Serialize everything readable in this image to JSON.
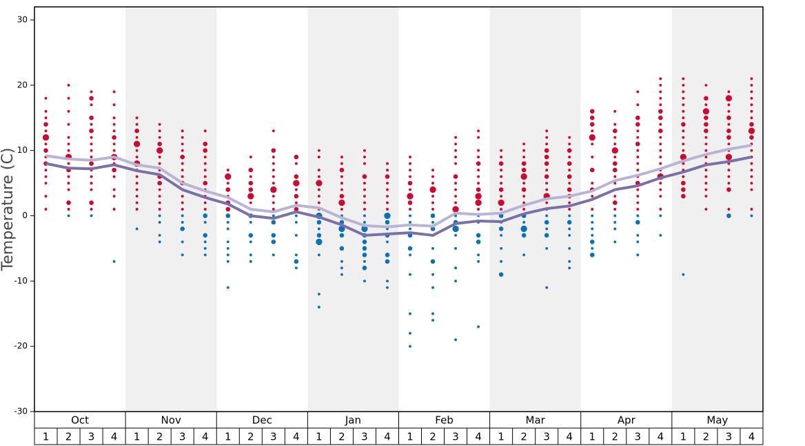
{
  "chart_data": {
    "type": "bubble",
    "ylabel": "Temperature (C)",
    "ylim": [
      -30,
      32
    ],
    "yticks": [
      -30,
      -20,
      -10,
      0,
      10,
      20,
      30
    ],
    "months": [
      "Oct",
      "Nov",
      "Dec",
      "Jan",
      "Feb",
      "Mar",
      "Apr",
      "May"
    ],
    "categories": [
      "1",
      "2",
      "3",
      "4",
      "1",
      "2",
      "3",
      "4",
      "1",
      "2",
      "3",
      "4",
      "1",
      "2",
      "3",
      "4",
      "1",
      "2",
      "3",
      "4",
      "1",
      "2",
      "3",
      "4",
      "1",
      "2",
      "3",
      "4",
      "1",
      "2",
      "3",
      "4"
    ],
    "colors": {
      "above": "#cc0a2f",
      "below": "#0a72b4"
    },
    "series": [
      {
        "color": "#b9b3d6",
        "values": [
          9.2,
          8.7,
          8.5,
          9.0,
          7.8,
          7.3,
          5.0,
          3.8,
          2.8,
          1.0,
          0.6,
          1.6,
          1.2,
          -0.3,
          -1.5,
          -1.7,
          -1.4,
          -1.6,
          0.4,
          0.2,
          0.4,
          1.6,
          2.6,
          3.0,
          3.8,
          5.4,
          6.2,
          7.2,
          8.4,
          9.4,
          10.2,
          10.8
        ]
      },
      {
        "color": "#7b6fa9",
        "values": [
          8.0,
          7.3,
          7.2,
          7.8,
          6.9,
          6.3,
          4.0,
          2.8,
          1.8,
          0.0,
          -0.4,
          0.6,
          -0.2,
          -1.4,
          -3.0,
          -2.8,
          -2.6,
          -3.0,
          -1.2,
          -0.8,
          -0.9,
          0.3,
          1.1,
          1.5,
          2.5,
          4.0,
          4.6,
          5.8,
          6.7,
          7.8,
          8.3,
          9.0
        ]
      }
    ],
    "dots": [
      {
        "temps": [
          18,
          16,
          15,
          14,
          13,
          12,
          11,
          10,
          9,
          8,
          7,
          6,
          5,
          3,
          1
        ],
        "sizes": [
          1,
          1,
          1,
          2,
          1,
          3,
          1,
          2,
          1,
          2,
          1,
          1,
          1,
          1,
          1
        ]
      },
      {
        "temps": [
          20,
          18,
          16,
          14,
          12,
          11,
          10,
          9,
          8,
          7,
          6,
          5,
          4,
          2,
          1,
          0
        ],
        "sizes": [
          1,
          1,
          1,
          1,
          1,
          1,
          1,
          3,
          1,
          2,
          1,
          1,
          1,
          2,
          1,
          1
        ]
      },
      {
        "temps": [
          19,
          18,
          17,
          15,
          14,
          13,
          12,
          11,
          10,
          9,
          8,
          7,
          6,
          5,
          4,
          2,
          1,
          0
        ],
        "sizes": [
          1,
          2,
          1,
          2,
          1,
          2,
          1,
          1,
          1,
          1,
          2,
          1,
          1,
          1,
          1,
          2,
          1,
          1
        ]
      },
      {
        "temps": [
          19,
          17,
          15,
          14,
          13,
          12,
          11,
          10,
          9,
          8,
          7,
          6,
          4,
          3,
          1,
          -7
        ],
        "sizes": [
          1,
          1,
          1,
          1,
          1,
          2,
          1,
          1,
          3,
          1,
          2,
          1,
          1,
          1,
          1,
          1
        ]
      },
      {
        "temps": [
          15,
          14,
          13,
          12,
          11,
          10,
          9,
          8,
          7,
          6,
          5,
          4,
          3,
          2,
          1,
          -2
        ],
        "sizes": [
          1,
          1,
          2,
          1,
          3,
          1,
          1,
          3,
          1,
          1,
          1,
          1,
          1,
          1,
          1,
          1
        ]
      },
      {
        "temps": [
          14,
          13,
          12,
          11,
          10,
          9,
          8,
          7,
          6,
          5,
          4,
          3,
          2,
          1,
          0,
          -1,
          -3,
          -4
        ],
        "sizes": [
          1,
          1,
          1,
          2,
          3,
          1,
          1,
          1,
          2,
          2,
          1,
          1,
          1,
          1,
          1,
          1,
          1,
          1
        ]
      },
      {
        "temps": [
          13,
          12,
          11,
          10,
          9,
          8,
          7,
          6,
          5,
          4,
          3,
          2,
          1,
          0,
          -1,
          -2,
          -4,
          -6
        ],
        "sizes": [
          1,
          1,
          1,
          1,
          2,
          1,
          1,
          1,
          2,
          1,
          1,
          1,
          1,
          1,
          1,
          2,
          1,
          1
        ]
      },
      {
        "temps": [
          13,
          11,
          10,
          9,
          8,
          7,
          6,
          5,
          4,
          3,
          2,
          1,
          0,
          -1,
          -3,
          -4,
          -5,
          -6
        ],
        "sizes": [
          1,
          2,
          2,
          1,
          1,
          1,
          1,
          2,
          1,
          1,
          1,
          1,
          2,
          1,
          2,
          1,
          1,
          1
        ]
      },
      {
        "temps": [
          7,
          6,
          5,
          4,
          3,
          2,
          1,
          0,
          -1,
          -2,
          -4,
          -5,
          -6,
          -7,
          -11
        ],
        "sizes": [
          1,
          3,
          1,
          2,
          1,
          2,
          2,
          2,
          1,
          1,
          1,
          1,
          1,
          1,
          1
        ]
      },
      {
        "temps": [
          9,
          7,
          6,
          5,
          4,
          3,
          2,
          1,
          0,
          -1,
          -3,
          -4,
          -6,
          -7
        ],
        "sizes": [
          1,
          2,
          1,
          2,
          2,
          3,
          1,
          1,
          2,
          1,
          2,
          1,
          1,
          1
        ]
      },
      {
        "temps": [
          13,
          10,
          9,
          8,
          7,
          6,
          5,
          4,
          3,
          2,
          1,
          0,
          -1,
          -3,
          -4,
          -6
        ],
        "sizes": [
          1,
          2,
          1,
          1,
          1,
          1,
          1,
          3,
          1,
          1,
          1,
          1,
          2,
          2,
          2,
          1
        ]
      },
      {
        "temps": [
          9,
          8,
          6,
          5,
          4,
          3,
          2,
          1,
          0,
          -1,
          -3,
          -6,
          -7,
          -8
        ],
        "sizes": [
          2,
          1,
          2,
          3,
          1,
          2,
          1,
          2,
          1,
          1,
          1,
          1,
          2,
          1
        ]
      },
      {
        "temps": [
          10,
          9,
          7,
          6,
          5,
          4,
          3,
          2,
          1,
          0,
          -1,
          -2,
          -3,
          -4,
          -6,
          -12,
          -14
        ],
        "sizes": [
          1,
          1,
          1,
          1,
          3,
          1,
          1,
          1,
          1,
          3,
          2,
          1,
          2,
          3,
          1,
          1,
          1
        ]
      },
      {
        "temps": [
          9,
          8,
          7,
          6,
          5,
          4,
          3,
          2,
          1,
          0,
          -1,
          -2,
          -3,
          -5,
          -7,
          -8,
          -9
        ],
        "sizes": [
          1,
          1,
          2,
          1,
          1,
          1,
          2,
          3,
          1,
          1,
          2,
          3,
          2,
          2,
          1,
          1,
          1
        ]
      },
      {
        "temps": [
          10,
          9,
          8,
          6,
          5,
          4,
          3,
          2,
          1,
          0,
          -1,
          -2,
          -3,
          -4,
          -5,
          -6,
          -7,
          -8,
          -10
        ],
        "sizes": [
          1,
          1,
          1,
          2,
          1,
          1,
          1,
          1,
          1,
          1,
          1,
          3,
          2,
          2,
          2,
          2,
          1,
          2,
          1
        ]
      },
      {
        "temps": [
          8,
          7,
          6,
          5,
          4,
          3,
          2,
          1,
          0,
          -1,
          -2,
          -3,
          -4,
          -6,
          -7,
          -10,
          -11
        ],
        "sizes": [
          1,
          1,
          2,
          1,
          1,
          1,
          1,
          1,
          3,
          2,
          1,
          2,
          1,
          2,
          2,
          1,
          1
        ]
      },
      {
        "temps": [
          9,
          8,
          7,
          6,
          5,
          4,
          3,
          2,
          1,
          0,
          -1,
          -2,
          -3,
          -5,
          -6,
          -9,
          -15,
          -18,
          -20
        ],
        "sizes": [
          1,
          1,
          1,
          1,
          2,
          1,
          3,
          2,
          1,
          1,
          1,
          1,
          2,
          2,
          1,
          1,
          1,
          1,
          1
        ]
      },
      {
        "temps": [
          7,
          6,
          5,
          4,
          3,
          2,
          1,
          0,
          -1,
          -2,
          -3,
          -5,
          -7,
          -9,
          -11,
          -15,
          -16
        ],
        "sizes": [
          1,
          1,
          1,
          3,
          1,
          1,
          1,
          2,
          1,
          2,
          1,
          1,
          2,
          1,
          1,
          1,
          1
        ]
      },
      {
        "temps": [
          12,
          11,
          10,
          9,
          8,
          6,
          5,
          4,
          3,
          2,
          1,
          0,
          -1,
          -2,
          -3,
          -5,
          -8,
          -10,
          -19
        ],
        "sizes": [
          1,
          1,
          1,
          1,
          1,
          2,
          1,
          1,
          1,
          1,
          3,
          1,
          2,
          3,
          1,
          1,
          1,
          1,
          1
        ]
      },
      {
        "temps": [
          13,
          12,
          10,
          9,
          8,
          7,
          6,
          5,
          4,
          3,
          2,
          1,
          0,
          -1,
          -3,
          -4,
          -6,
          -7,
          -17
        ],
        "sizes": [
          1,
          1,
          1,
          1,
          2,
          1,
          1,
          1,
          2,
          3,
          3,
          1,
          1,
          1,
          2,
          2,
          1,
          1,
          1
        ]
      },
      {
        "temps": [
          10,
          9,
          8,
          7,
          6,
          5,
          4,
          3,
          2,
          1,
          0,
          -1,
          -2,
          -3,
          -5,
          -7,
          -9
        ],
        "sizes": [
          1,
          1,
          2,
          1,
          1,
          1,
          2,
          1,
          3,
          1,
          2,
          1,
          2,
          1,
          1,
          1,
          2
        ]
      },
      {
        "temps": [
          11,
          10,
          9,
          8,
          7,
          6,
          5,
          4,
          3,
          2,
          1,
          0,
          -1,
          -2,
          -3,
          -6
        ],
        "sizes": [
          1,
          1,
          1,
          2,
          2,
          3,
          1,
          2,
          1,
          1,
          1,
          2,
          1,
          3,
          2,
          1
        ]
      },
      {
        "temps": [
          13,
          12,
          11,
          10,
          9,
          8,
          7,
          6,
          5,
          4,
          3,
          2,
          1,
          0,
          -1,
          -2,
          -3,
          -5,
          -11
        ],
        "sizes": [
          1,
          1,
          1,
          2,
          2,
          2,
          1,
          2,
          1,
          1,
          3,
          1,
          1,
          1,
          2,
          1,
          2,
          1,
          1
        ]
      },
      {
        "temps": [
          12,
          11,
          10,
          9,
          8,
          7,
          6,
          5,
          4,
          3,
          2,
          1,
          0,
          -1,
          -2,
          -3,
          -5,
          -7,
          -8
        ],
        "sizes": [
          1,
          1,
          2,
          1,
          2,
          1,
          2,
          1,
          2,
          2,
          1,
          1,
          1,
          2,
          1,
          1,
          1,
          1,
          1
        ]
      },
      {
        "temps": [
          16,
          15,
          14,
          13,
          12,
          11,
          9,
          7,
          5,
          4,
          3,
          1,
          0,
          -1,
          -2,
          -3,
          -4,
          -5,
          -6
        ],
        "sizes": [
          2,
          2,
          2,
          1,
          3,
          1,
          1,
          2,
          1,
          2,
          1,
          1,
          1,
          1,
          1,
          1,
          2,
          1,
          2
        ]
      },
      {
        "temps": [
          16,
          14,
          13,
          12,
          11,
          10,
          9,
          8,
          7,
          6,
          5,
          4,
          3,
          2,
          1,
          0,
          -1,
          -2,
          -4
        ],
        "sizes": [
          1,
          1,
          2,
          1,
          1,
          3,
          1,
          2,
          2,
          1,
          1,
          1,
          1,
          2,
          1,
          1,
          1,
          1,
          1
        ]
      },
      {
        "temps": [
          19,
          17,
          15,
          14,
          13,
          12,
          11,
          10,
          9,
          8,
          7,
          6,
          5,
          4,
          3,
          2,
          1,
          0,
          -1,
          -3,
          -4,
          -6
        ],
        "sizes": [
          1,
          1,
          2,
          2,
          1,
          1,
          2,
          1,
          1,
          1,
          1,
          1,
          2,
          1,
          1,
          1,
          1,
          1,
          2,
          1,
          1,
          1
        ]
      },
      {
        "temps": [
          21,
          20,
          19,
          18,
          17,
          16,
          15,
          14,
          13,
          12,
          11,
          10,
          9,
          8,
          7,
          6,
          5,
          4,
          3,
          1,
          0,
          -3
        ],
        "sizes": [
          1,
          1,
          1,
          1,
          1,
          2,
          2,
          1,
          2,
          1,
          1,
          1,
          1,
          1,
          1,
          3,
          1,
          1,
          1,
          1,
          1,
          1
        ]
      },
      {
        "temps": [
          21,
          20,
          19,
          18,
          17,
          16,
          15,
          14,
          13,
          12,
          11,
          10,
          9,
          8,
          7,
          6,
          5,
          4,
          3,
          -9
        ],
        "sizes": [
          1,
          1,
          1,
          1,
          1,
          1,
          1,
          2,
          1,
          1,
          1,
          1,
          3,
          1,
          1,
          1,
          2,
          2,
          2,
          1
        ]
      },
      {
        "temps": [
          20,
          18,
          17,
          16,
          15,
          14,
          13,
          12,
          11,
          10,
          9,
          8,
          7,
          6,
          5,
          4,
          3,
          1
        ],
        "sizes": [
          1,
          2,
          1,
          3,
          2,
          2,
          2,
          1,
          1,
          1,
          1,
          1,
          1,
          1,
          1,
          1,
          1,
          1
        ]
      },
      {
        "temps": [
          19,
          18,
          17,
          16,
          15,
          14,
          13,
          12,
          11,
          10,
          9,
          8,
          7,
          6,
          5,
          4,
          1,
          0
        ],
        "sizes": [
          1,
          3,
          1,
          1,
          2,
          1,
          2,
          2,
          1,
          1,
          3,
          1,
          1,
          1,
          1,
          2,
          1,
          2
        ]
      },
      {
        "temps": [
          21,
          20,
          19,
          18,
          17,
          16,
          15,
          14,
          13,
          12,
          11,
          10,
          9,
          8,
          7,
          6,
          5,
          4,
          1,
          0
        ],
        "sizes": [
          1,
          1,
          1,
          1,
          1,
          1,
          1,
          2,
          3,
          2,
          1,
          1,
          1,
          1,
          1,
          1,
          1,
          1,
          1,
          1
        ]
      }
    ]
  }
}
